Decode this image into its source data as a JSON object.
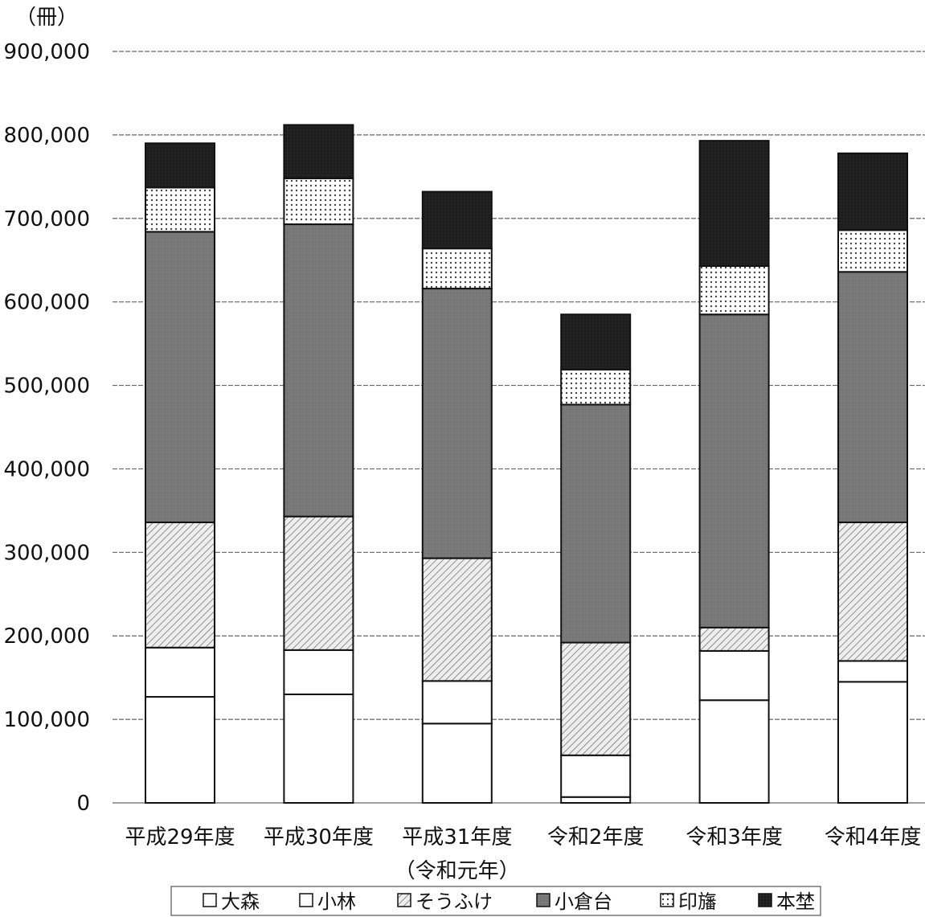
{
  "chart_data": {
    "type": "bar",
    "stacked": true,
    "unit_label": "（冊）",
    "categories": [
      "平成29年度",
      "平成30年度",
      "平成31年度",
      "令和2年度",
      "令和3年度",
      "令和4年度"
    ],
    "category_sublabels": [
      "",
      "",
      "（令和元年）",
      "",
      "",
      ""
    ],
    "ylim": [
      0,
      900000
    ],
    "yticks": [
      0,
      100000,
      200000,
      300000,
      400000,
      500000,
      600000,
      700000,
      800000,
      900000
    ],
    "ytick_labels": [
      "0",
      "100,000",
      "200,000",
      "300,000",
      "400,000",
      "500,000",
      "600,000",
      "700,000",
      "800,000",
      "900,000"
    ],
    "grid": true,
    "legend_position": "bottom",
    "series": [
      {
        "name": "大森",
        "pattern": "white",
        "values": [
          127000,
          130000,
          95000,
          7000,
          123000,
          145000
        ]
      },
      {
        "name": "小林",
        "pattern": "white",
        "values": [
          59000,
          53000,
          51000,
          50000,
          59000,
          25000
        ]
      },
      {
        "name": "そうふけ",
        "pattern": "hatch",
        "values": [
          150000,
          160000,
          147000,
          135000,
          28000,
          166000
        ]
      },
      {
        "name": "小倉台",
        "pattern": "gray",
        "values": [
          348000,
          350000,
          323000,
          285000,
          375000,
          300000
        ]
      },
      {
        "name": "印旛",
        "pattern": "dots",
        "values": [
          53000,
          55000,
          48000,
          42000,
          58000,
          50000
        ]
      },
      {
        "name": "本埜",
        "pattern": "dark",
        "values": [
          53000,
          64000,
          68000,
          66000,
          150000,
          92000
        ]
      }
    ]
  }
}
